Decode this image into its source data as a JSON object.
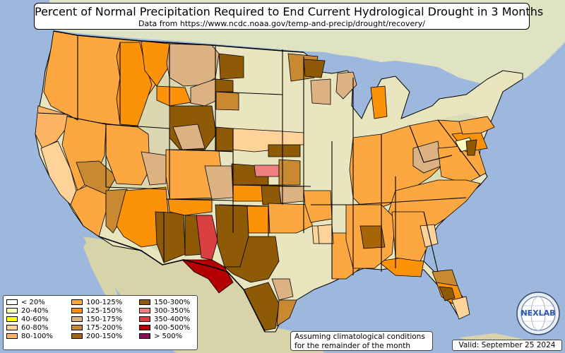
{
  "header": {
    "title": "Percent of Normal Precipitation Required to End Current Hydrological Drought in 3 Months",
    "subtitle": "Data from https://www.ncdc.noaa.gov/temp-and-precip/drought/recovery/"
  },
  "legend": {
    "items": [
      {
        "label": "< 20%",
        "color": "#ffffff"
      },
      {
        "label": "20-40%",
        "color": "#ffffc0"
      },
      {
        "label": "40-60%",
        "color": "#ffff00"
      },
      {
        "label": "60-80%",
        "color": "#fdd39a"
      },
      {
        "label": "80-100%",
        "color": "#fdb463"
      },
      {
        "label": "100-125%",
        "color": "#fca73f"
      },
      {
        "label": "125-150%",
        "color": "#fb9208"
      },
      {
        "label": "150-175%",
        "color": "#ddb282"
      },
      {
        "label": "175-200%",
        "color": "#c98930"
      },
      {
        "label": "200-150%",
        "color": "#a86508"
      },
      {
        "label": "150-300%",
        "color": "#8e5a05"
      },
      {
        "label": "300-350%",
        "color": "#f08080"
      },
      {
        "label": "350-400%",
        "color": "#d9403f"
      },
      {
        "label": "400-500%",
        "color": "#b40000"
      },
      {
        "label": "> 500%",
        "color": "#8b0a5a"
      }
    ]
  },
  "note": {
    "line1": "Assuming climatological conditions",
    "line2": "for the remainder of the month"
  },
  "valid": "Valid: September 25 2024",
  "logo": {
    "text": "NEXLAB",
    "icon": "globe-icon"
  },
  "colors": {
    "ocean": "#9db8dc",
    "land": "#e9e5bf",
    "mountains": "#cfcfa6",
    "border": "#000000"
  }
}
